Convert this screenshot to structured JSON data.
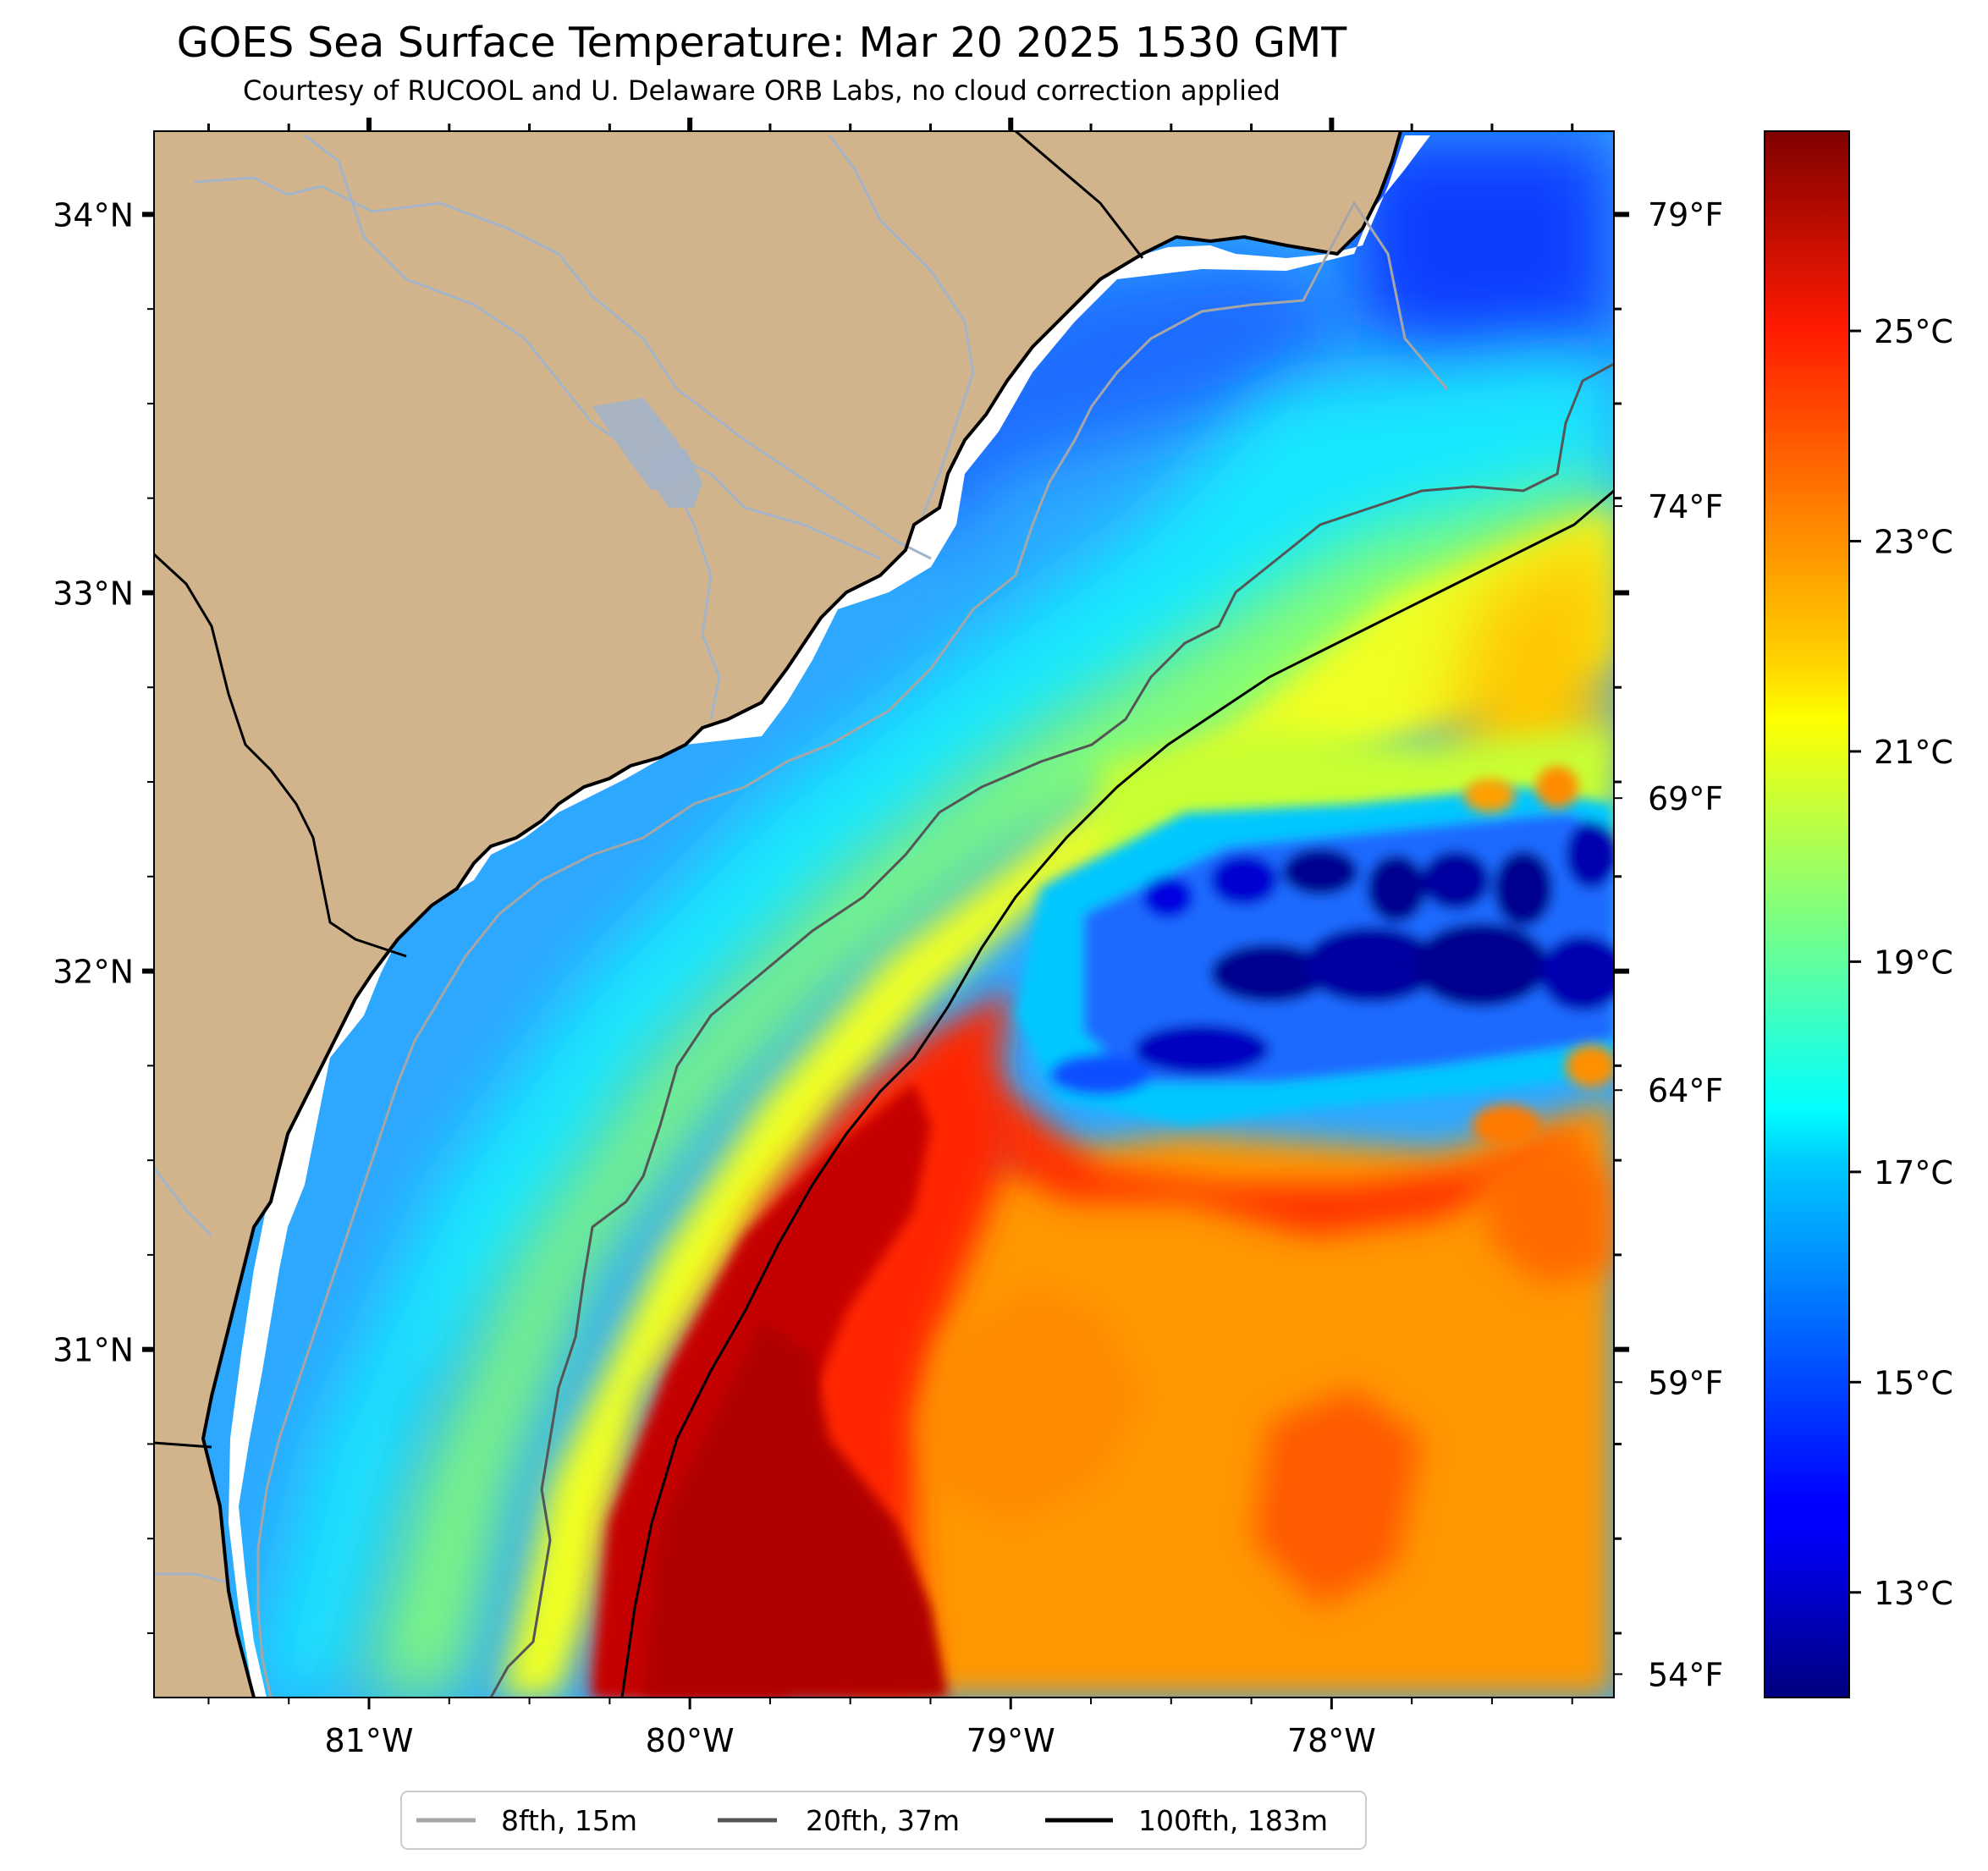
{
  "header": {
    "title": "GOES Sea Surface Temperature: Mar 20 2025 1530 GMT",
    "subtitle": "Courtesy of RUCOOL and U. Delaware ORB Labs, no cloud correction applied"
  },
  "map": {
    "longitude_range": [
      -81.67,
      -77.12
    ],
    "latitude_range": [
      30.08,
      34.22
    ],
    "land_color": "#d2b48c",
    "river_color": "#a4b4c8",
    "coastline_color": "#000000",
    "colormap": "jet",
    "x_ticks": [
      {
        "value": -81,
        "label": "81°W"
      },
      {
        "value": -80,
        "label": "80°W"
      },
      {
        "value": -79,
        "label": "79°W"
      },
      {
        "value": -78,
        "label": "78°W"
      }
    ],
    "y_ticks": [
      {
        "value": 34,
        "label": "34°N"
      },
      {
        "value": 33,
        "label": "33°N"
      },
      {
        "value": 32,
        "label": "32°N"
      },
      {
        "value": 31,
        "label": "31°N"
      }
    ],
    "fahrenheit_ticks": [
      {
        "value": 79,
        "label": "79°F"
      },
      {
        "value": 74,
        "label": "74°F"
      },
      {
        "value": 69,
        "label": "69°F"
      },
      {
        "value": 64,
        "label": "64°F"
      },
      {
        "value": 59,
        "label": "59°F"
      },
      {
        "value": 54,
        "label": "54°F"
      }
    ]
  },
  "colorbar": {
    "unit": "°C",
    "range_c": [
      12,
      26.9
    ],
    "ticks": [
      {
        "value": 25,
        "label": "25°C"
      },
      {
        "value": 23,
        "label": "23°C"
      },
      {
        "value": 21,
        "label": "21°C"
      },
      {
        "value": 19,
        "label": "19°C"
      },
      {
        "value": 17,
        "label": "17°C"
      },
      {
        "value": 15,
        "label": "15°C"
      },
      {
        "value": 13,
        "label": "13°C"
      }
    ]
  },
  "legend": {
    "items": [
      {
        "label": "8fth, 15m",
        "color": "#a6a6a6"
      },
      {
        "label": "20fth, 37m",
        "color": "#555555"
      },
      {
        "label": "100fth, 183m",
        "color": "#000000"
      }
    ]
  }
}
